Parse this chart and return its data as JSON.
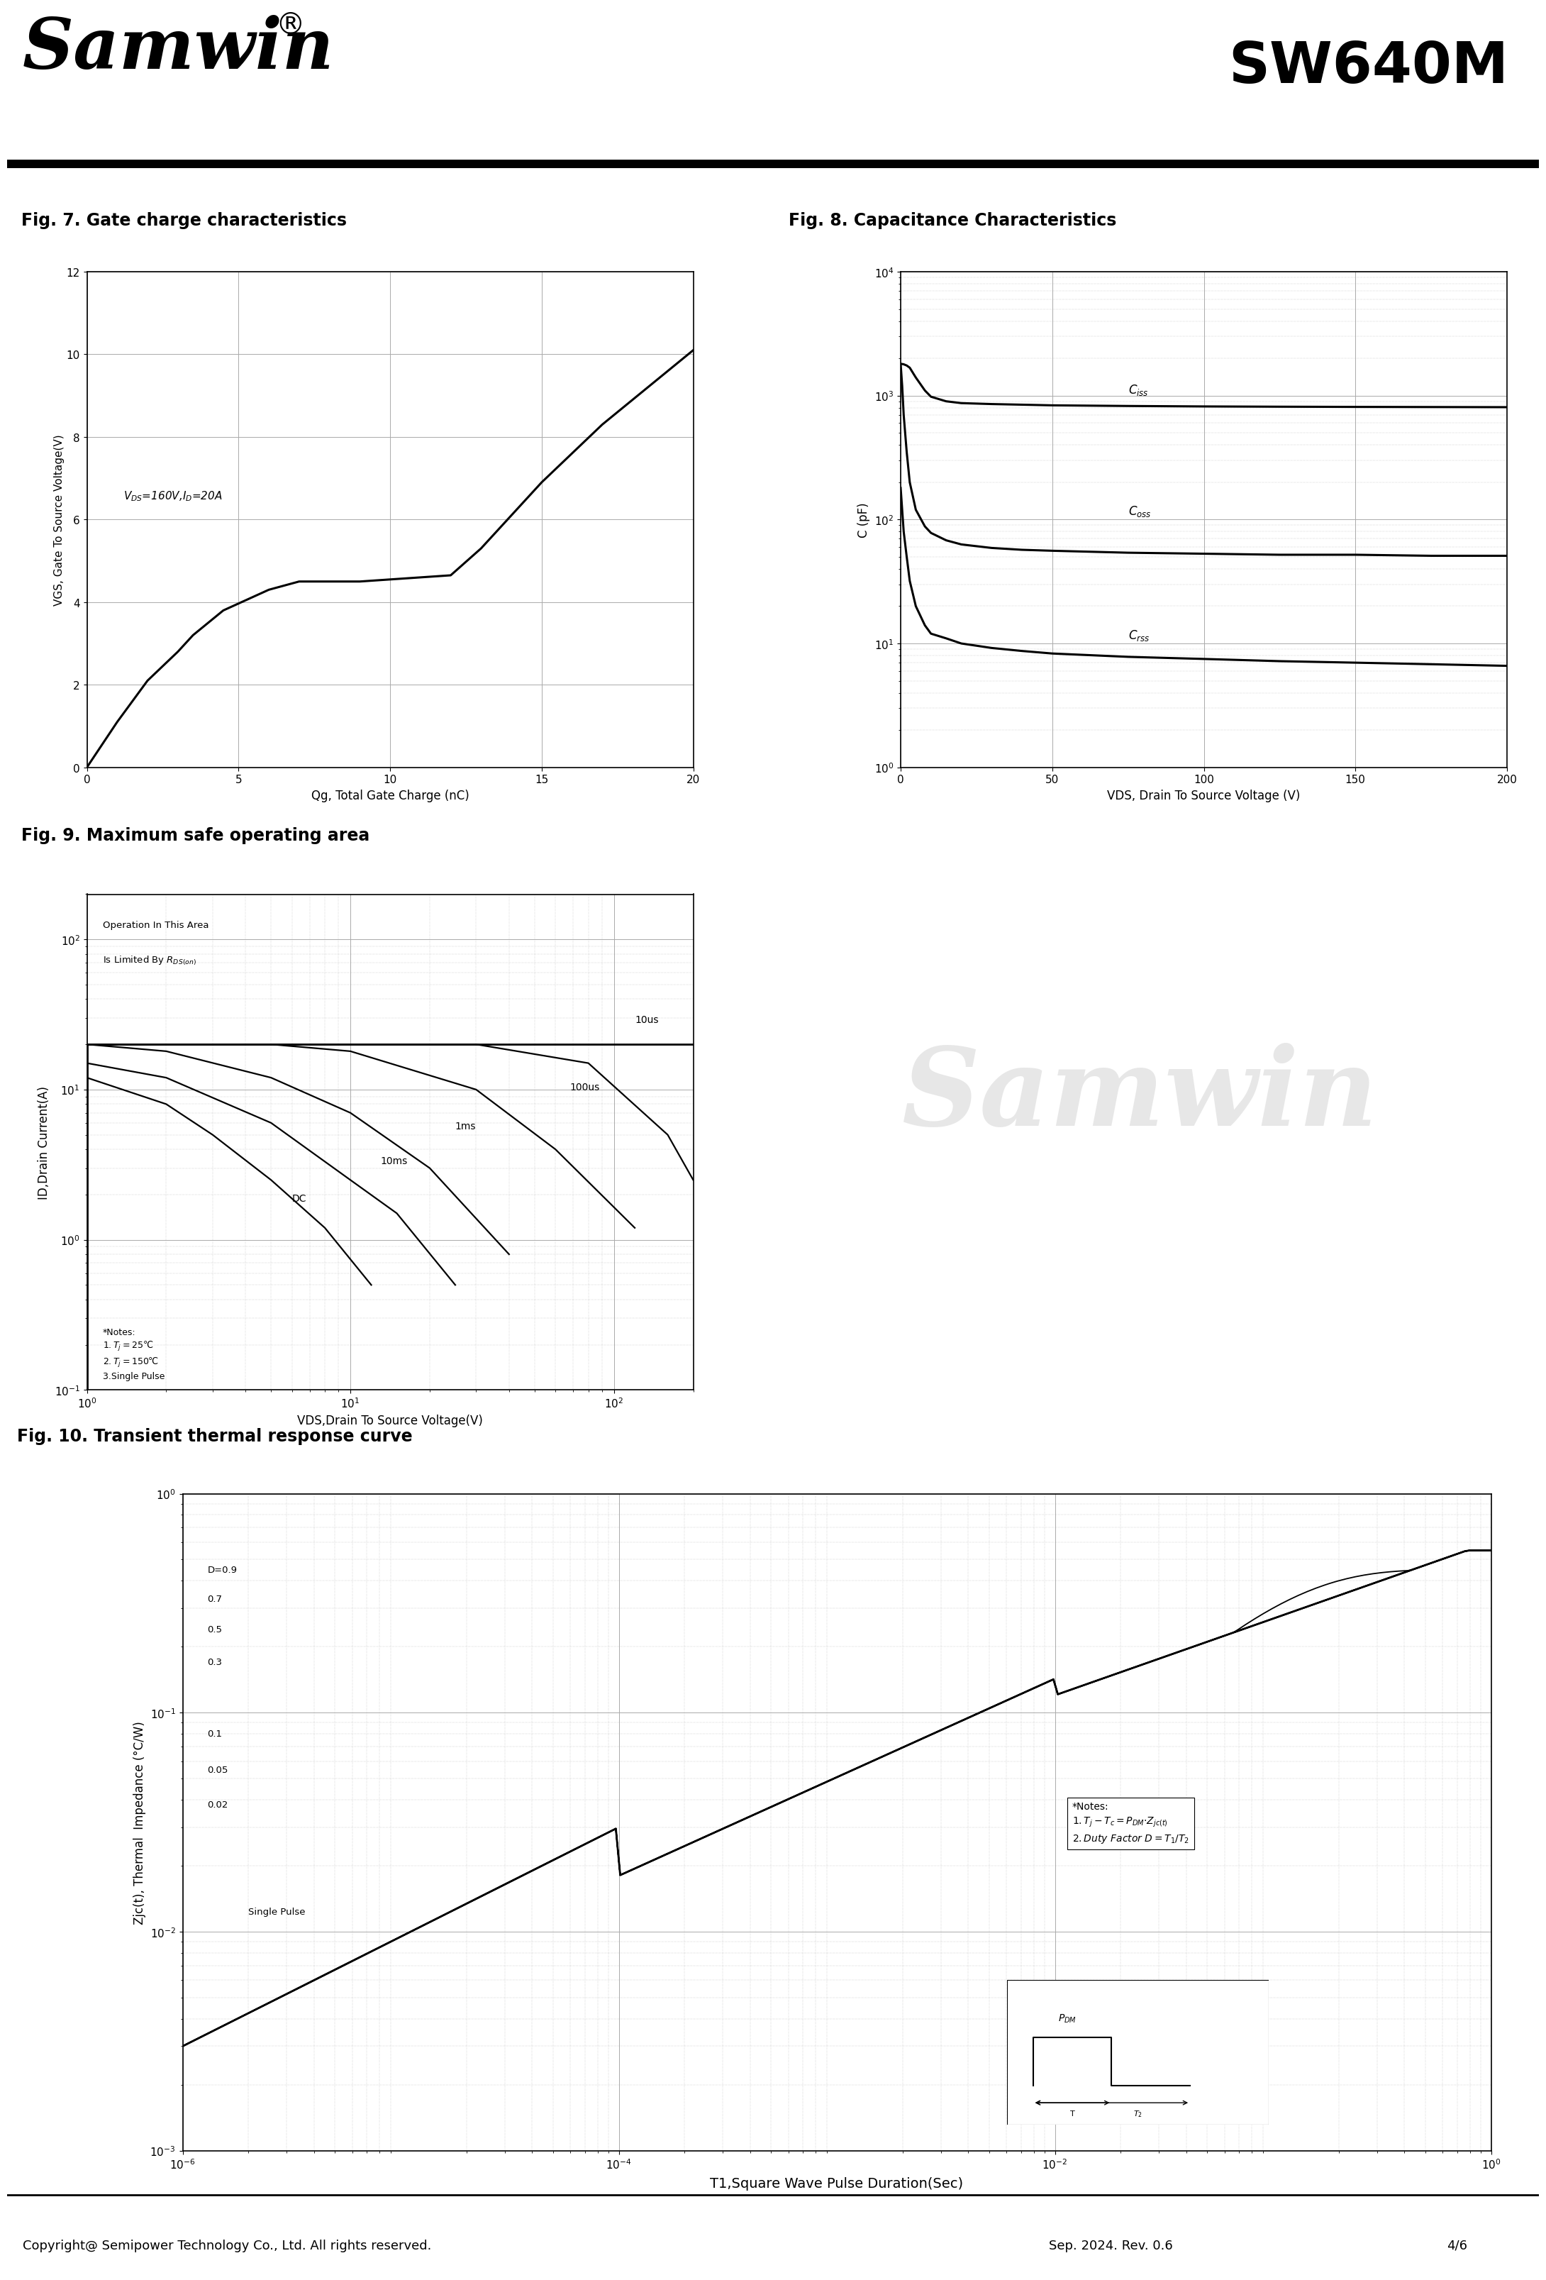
{
  "title_company": "Samwin",
  "title_part": "SW640M",
  "fig7_title": "Fig. 7. Gate charge characteristics",
  "fig8_title": "Fig. 8. Capacitance Characteristics",
  "fig9_title": "Fig. 9. Maximum safe operating area",
  "fig10_title": "Fig. 10. Transient thermal response curve",
  "footer_left": "Copyright@ Semipower Technology Co., Ltd. All rights reserved.",
  "footer_right": "Sep. 2024. Rev. 0.6",
  "footer_page": "4/6",
  "fig7_xlabel": "Qg, Total Gate Charge (nC)",
  "fig7_ylabel": "VGS, Gate To Source Voltage(V)",
  "fig7_annotation": "VDS=160V,ID=20A",
  "fig7_xlim": [
    0,
    20
  ],
  "fig7_ylim": [
    0,
    12
  ],
  "fig7_xticks": [
    0,
    5,
    10,
    15,
    20
  ],
  "fig7_yticks": [
    0,
    2,
    4,
    6,
    8,
    10,
    12
  ],
  "fig8_xlabel": "VDS, Drain To Source Voltage (V)",
  "fig8_ylabel": "C (pF)",
  "fig8_xlim": [
    0,
    200
  ],
  "fig8_xticks": [
    0,
    50,
    100,
    150,
    200
  ],
  "fig9_xlabel": "VDS,Drain To Source Voltage(V)",
  "fig9_ylabel": "ID,Drain Current(A)",
  "fig10_xlabel": "T1,Square Wave Pulse Duration(Sec)",
  "fig10_ylabel": "Zjc(t), Thermal  Impedance (°C/W)",
  "fig10_duty_labels": [
    "D=0.9",
    "0.7",
    "0.5",
    "0.3",
    "0.1",
    "0.05",
    "0.02"
  ],
  "fig10_single_pulse": "Single Pulse",
  "background_color": "#ffffff",
  "plot_bg": "#ffffff",
  "grid_color": "#aaaaaa",
  "line_color": "#000000"
}
